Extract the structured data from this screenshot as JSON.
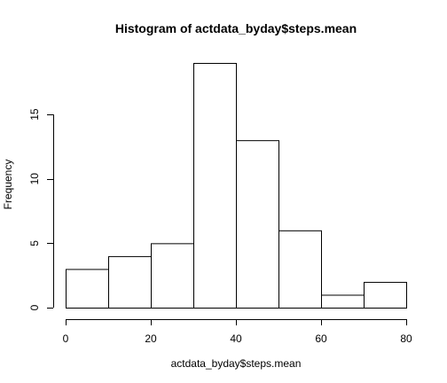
{
  "chart_data": {
    "type": "bar",
    "title": "Histogram of actdata_byday$steps.mean",
    "xlabel": "actdata_byday$steps.mean",
    "ylabel": "Frequency",
    "bins": [
      {
        "start": 0,
        "end": 10,
        "count": 3
      },
      {
        "start": 10,
        "end": 20,
        "count": 4
      },
      {
        "start": 20,
        "end": 30,
        "count": 5
      },
      {
        "start": 30,
        "end": 40,
        "count": 19
      },
      {
        "start": 40,
        "end": 50,
        "count": 13
      },
      {
        "start": 50,
        "end": 60,
        "count": 6
      },
      {
        "start": 60,
        "end": 70,
        "count": 1
      },
      {
        "start": 70,
        "end": 80,
        "count": 2
      }
    ],
    "xlim": [
      0,
      80
    ],
    "ylim": [
      0,
      19
    ],
    "x_ticks": [
      0,
      20,
      40,
      60,
      80
    ],
    "y_ticks": [
      0,
      5,
      10,
      15
    ],
    "grid": false,
    "legend": "none"
  }
}
